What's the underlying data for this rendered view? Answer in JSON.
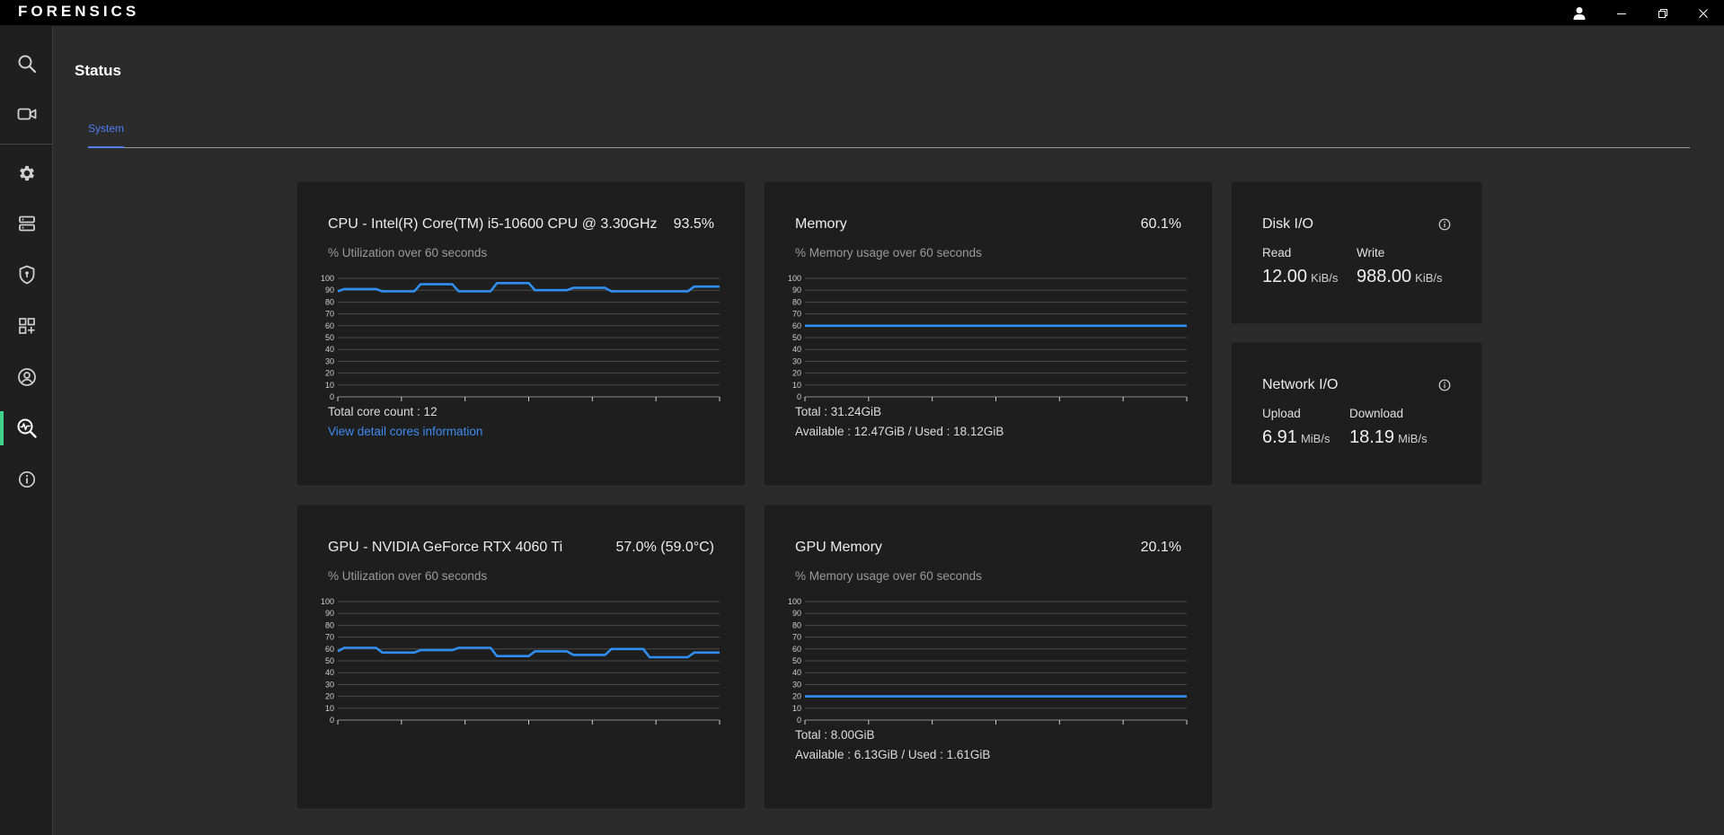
{
  "app": {
    "brand": "FORENSICS"
  },
  "page": {
    "title": "Status",
    "tabs": [
      {
        "label": "System",
        "active": true
      }
    ]
  },
  "sidebar": {
    "items": [
      {
        "icon": "search-icon"
      },
      {
        "icon": "video-camera-icon"
      },
      {
        "icon": "gear-icon"
      },
      {
        "icon": "server-icon"
      },
      {
        "icon": "shield-icon"
      },
      {
        "icon": "apps-add-icon"
      },
      {
        "icon": "user-circle-icon"
      },
      {
        "icon": "system-monitor-icon",
        "active": true
      },
      {
        "icon": "info-icon"
      }
    ]
  },
  "cpu": {
    "title": "CPU - Intel(R) Core(TM) i5-10600 CPU @ 3.30GHz",
    "value": "93.5%",
    "subtitle": "% Utilization over 60 seconds",
    "core_count": "Total core count : 12",
    "detail_link": "View detail cores information"
  },
  "memory": {
    "title": "Memory",
    "value": "60.1%",
    "subtitle": "% Memory usage over 60 seconds",
    "total": "Total : 31.24GiB",
    "available_used": "Available : 12.47GiB / Used : 18.12GiB"
  },
  "disk": {
    "title": "Disk I/O",
    "read_label": "Read",
    "read_value": "12.00",
    "read_unit": "KiB/s",
    "write_label": "Write",
    "write_value": "988.00",
    "write_unit": "KiB/s"
  },
  "network": {
    "title": "Network I/O",
    "upload_label": "Upload",
    "upload_value": "6.91",
    "upload_unit": "MiB/s",
    "download_label": "Download",
    "download_value": "18.19",
    "download_unit": "MiB/s"
  },
  "gpu": {
    "title": "GPU - NVIDIA GeForce RTX 4060 Ti",
    "value": "57.0% (59.0°C)",
    "subtitle": "% Utilization over 60 seconds"
  },
  "gpu_memory": {
    "title": "GPU Memory",
    "value": "20.1%",
    "subtitle": "% Memory usage over 60 seconds",
    "total": "Total : 8.00GiB",
    "available_used": "Available : 6.13GiB / Used : 1.61GiB"
  },
  "colors": {
    "line": "#2f8ef0",
    "accent_active": "#3fd08a",
    "tab_active": "#4f7df5",
    "link": "#3d8bf0"
  },
  "chart_data": [
    {
      "id": "cpu",
      "type": "line",
      "ylim": [
        0,
        100
      ],
      "yticks": [
        "0",
        "10",
        "20",
        "30",
        "40",
        "50",
        "60",
        "70",
        "80",
        "90",
        "100"
      ],
      "x": [
        0,
        1,
        2,
        3,
        4,
        5,
        6,
        7,
        8,
        9,
        10,
        11,
        12,
        13,
        14,
        15,
        16,
        17,
        18,
        19,
        20,
        21,
        22,
        23,
        24,
        25,
        26,
        27,
        28,
        29,
        30,
        31,
        32,
        33,
        34,
        35,
        36,
        37,
        38,
        39,
        40,
        41,
        42,
        43,
        44,
        45,
        46,
        47,
        48,
        49,
        50,
        51,
        52,
        53,
        54,
        55,
        56,
        57,
        58,
        59,
        60
      ],
      "values": [
        89,
        91,
        91,
        91,
        91,
        91,
        91,
        89,
        89,
        89,
        89,
        89,
        89,
        95,
        95,
        95,
        95,
        95,
        95,
        89,
        89,
        89,
        89,
        89,
        89,
        96,
        96,
        96,
        96,
        96,
        96,
        90,
        90,
        90,
        90,
        90,
        90,
        92,
        92,
        92,
        92,
        92,
        92,
        89,
        89,
        89,
        89,
        89,
        89,
        89,
        89,
        89,
        89,
        89,
        89,
        89,
        93,
        93,
        93,
        93,
        93
      ]
    },
    {
      "id": "memory",
      "type": "line",
      "ylim": [
        0,
        100
      ],
      "yticks": [
        "0",
        "10",
        "20",
        "30",
        "40",
        "50",
        "60",
        "70",
        "80",
        "90",
        "100"
      ],
      "x": [
        0,
        10,
        20,
        30,
        40,
        50,
        60
      ],
      "values": [
        60,
        60,
        60,
        60,
        60,
        60,
        60
      ]
    },
    {
      "id": "gpu",
      "type": "line",
      "ylim": [
        0,
        100
      ],
      "yticks": [
        "0",
        "10",
        "20",
        "30",
        "40",
        "50",
        "60",
        "70",
        "80",
        "90",
        "100"
      ],
      "x": [
        0,
        1,
        2,
        3,
        4,
        5,
        6,
        7,
        8,
        9,
        10,
        11,
        12,
        13,
        14,
        15,
        16,
        17,
        18,
        19,
        20,
        21,
        22,
        23,
        24,
        25,
        26,
        27,
        28,
        29,
        30,
        31,
        32,
        33,
        34,
        35,
        36,
        37,
        38,
        39,
        40,
        41,
        42,
        43,
        44,
        45,
        46,
        47,
        48,
        49,
        50,
        51,
        52,
        53,
        54,
        55,
        56,
        57,
        58,
        59,
        60
      ],
      "values": [
        58,
        61,
        61,
        61,
        61,
        61,
        61,
        57,
        57,
        57,
        57,
        57,
        57,
        59,
        59,
        59,
        59,
        59,
        59,
        61,
        61,
        61,
        61,
        61,
        61,
        54,
        54,
        54,
        54,
        54,
        54,
        58,
        58,
        58,
        58,
        58,
        58,
        55,
        55,
        55,
        55,
        55,
        55,
        60,
        60,
        60,
        60,
        60,
        60,
        53,
        53,
        53,
        53,
        53,
        53,
        53,
        57,
        57,
        57,
        57,
        57
      ]
    },
    {
      "id": "gpu_memory",
      "type": "line",
      "ylim": [
        0,
        100
      ],
      "yticks": [
        "0",
        "10",
        "20",
        "30",
        "40",
        "50",
        "60",
        "70",
        "80",
        "90",
        "100"
      ],
      "x": [
        0,
        10,
        20,
        30,
        40,
        50,
        60
      ],
      "values": [
        20,
        20,
        20,
        20,
        20,
        20,
        20
      ]
    }
  ]
}
